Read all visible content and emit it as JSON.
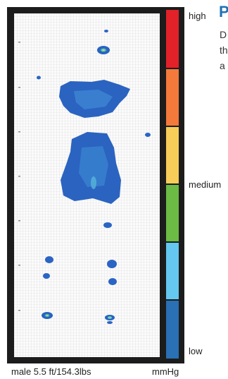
{
  "scale": {
    "high_label": "high",
    "medium_label": "medium",
    "low_label": "low",
    "unit": "mmHg",
    "colors": [
      "#e22128",
      "#f37a3a",
      "#f6cd58",
      "#6bbb45",
      "#64c8f0",
      "#2970b5"
    ]
  },
  "subject": {
    "caption": "male 5.5 ft/154.3lbs"
  },
  "panel": {
    "heading": "P",
    "lines": [
      "D",
      "th",
      "a"
    ]
  }
}
